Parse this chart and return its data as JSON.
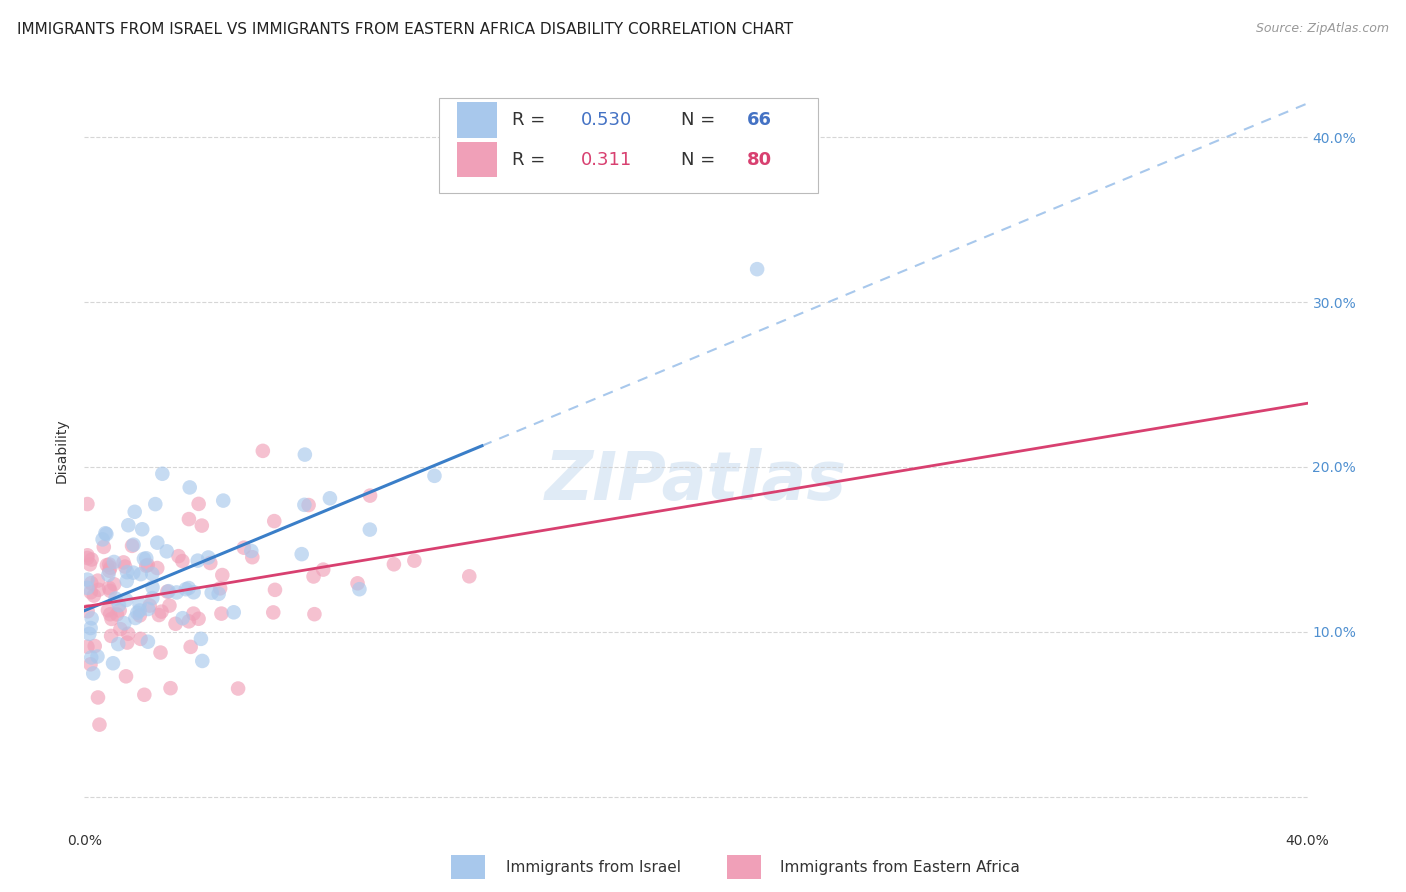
{
  "title": "IMMIGRANTS FROM ISRAEL VS IMMIGRANTS FROM EASTERN AFRICA DISABILITY CORRELATION CHART",
  "source": "Source: ZipAtlas.com",
  "ylabel": "Disability",
  "xlim": [
    0.0,
    0.4
  ],
  "ylim": [
    -0.02,
    0.44
  ],
  "series": [
    {
      "name": "Immigrants from Israel",
      "R": 0.53,
      "N": 66,
      "color": "#A8C8EC",
      "trend_color": "#3A7EC8",
      "trend_dashed_color": "#A8C8EC"
    },
    {
      "name": "Immigrants from Eastern Africa",
      "R": 0.311,
      "N": 80,
      "color": "#F0A0B8",
      "trend_color": "#D84070",
      "trend_dashed_color": "#F0A0B8"
    }
  ],
  "watermark": "ZIPatlas",
  "background_color": "#FFFFFF",
  "grid_color": "#CCCCCC",
  "title_fontsize": 11,
  "axis_fontsize": 10,
  "right_tick_color": "#5090D0",
  "legend_R_color_blue": "#4472C4",
  "legend_R_color_pink": "#D84070",
  "legend_N_color_blue": "#4472C4",
  "legend_N_color_pink": "#D84070"
}
